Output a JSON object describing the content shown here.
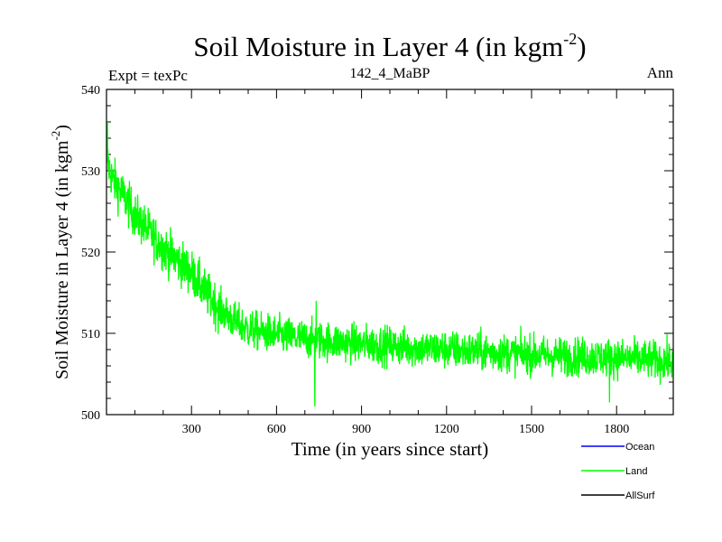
{
  "chart_data": {
    "type": "line",
    "title": "Soil Moisture in Layer 4 (in kgm",
    "title_sup": "-2",
    "title_close": ")",
    "subtitle_left": "Expt = texPc",
    "subtitle_center": "142_4_MaBP",
    "subtitle_right": "Ann",
    "xlabel": "Time (in years since start)",
    "ylabel": "Soil Moisture in Layer 4 (in kgm",
    "ylabel_sup": "-2",
    "ylabel_close": ")",
    "xlim": [
      0,
      2000
    ],
    "ylim": [
      500,
      540
    ],
    "xticks": [
      300,
      600,
      900,
      1200,
      1500,
      1800
    ],
    "xtick_labels": [
      "300",
      "600",
      "900",
      "1200",
      "1500",
      "1800"
    ],
    "yticks": [
      500,
      510,
      520,
      530,
      540
    ],
    "ytick_labels": [
      "500",
      "510",
      "520",
      "530",
      "540"
    ],
    "legend": [
      {
        "name": "Ocean",
        "color": "#0000ff"
      },
      {
        "name": "Land",
        "color": "#00ff00"
      },
      {
        "name": "AllSurf",
        "color": "#000000"
      }
    ],
    "series": [
      {
        "name": "Land",
        "color": "#00ff00",
        "trend_points": {
          "x": [
            0,
            5,
            20,
            50,
            100,
            150,
            200,
            250,
            300,
            350,
            400,
            450,
            500,
            600,
            700,
            800,
            900,
            1000,
            1100,
            1200,
            1300,
            1400,
            1500,
            1600,
            1700,
            1800,
            1900,
            2000
          ],
          "y": [
            533,
            531,
            529,
            527.5,
            524.5,
            522.5,
            520.5,
            519,
            517.5,
            515,
            513,
            511.5,
            510.5,
            509.8,
            509.3,
            509,
            508.7,
            508.5,
            508.2,
            508,
            507.8,
            507.6,
            507.4,
            507.2,
            507.1,
            507,
            506.8,
            506.5
          ]
        },
        "noise_amplitude": 1.6,
        "notable_points": {
          "x": [
            3,
            735,
            1775,
            740
          ],
          "y": [
            536,
            501,
            501.5,
            514
          ]
        }
      }
    ]
  }
}
